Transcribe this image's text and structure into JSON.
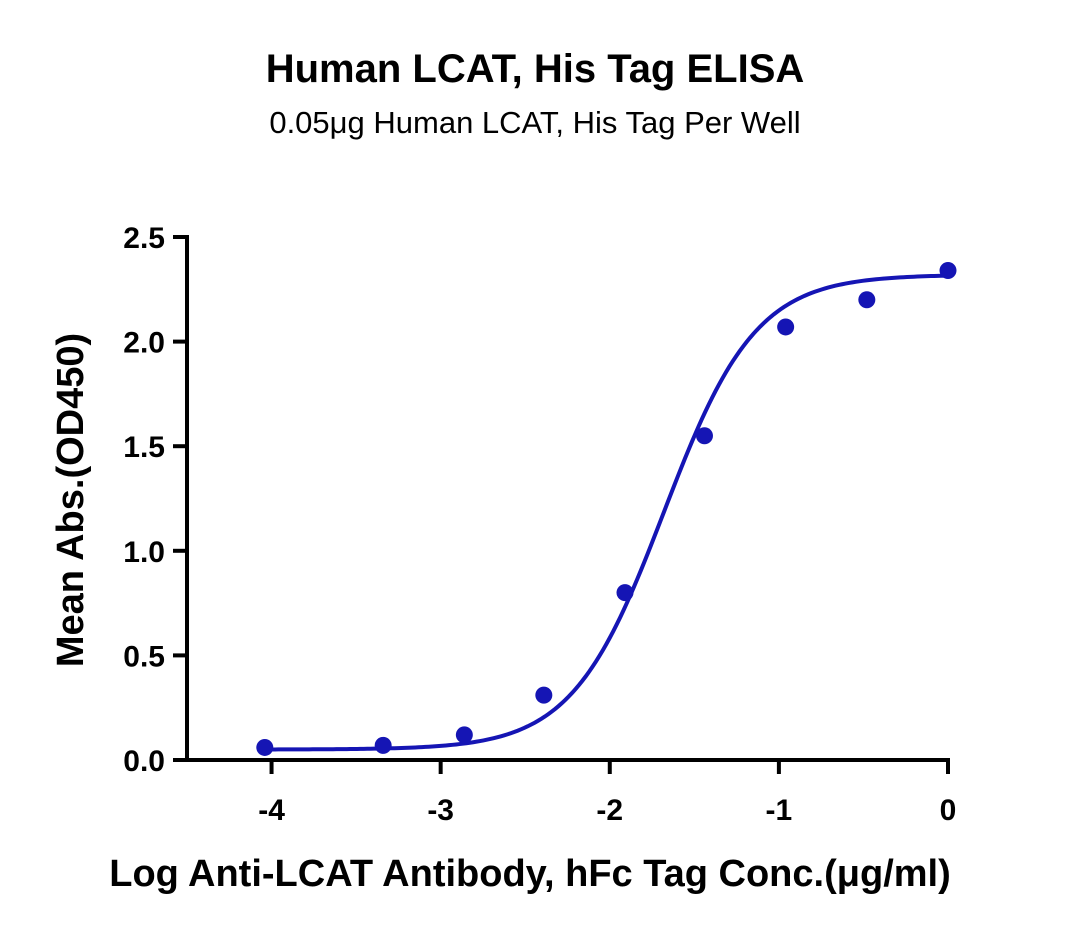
{
  "chart_data": {
    "type": "scatter",
    "title": "Human LCAT, His Tag ELISA",
    "subtitle": "0.05μg Human LCAT, His Tag Per Well",
    "xlabel": "Log Anti-LCAT Antibody, hFc Tag Conc.(μg/ml)",
    "ylabel": "Mean Abs.(OD450)",
    "xlim": [
      -4.5,
      0
    ],
    "ylim": [
      0,
      2.5
    ],
    "x_ticks": [
      -4,
      -3,
      -2,
      -1,
      0
    ],
    "x_tick_labels": [
      "-4",
      "-3",
      "-2",
      "-1",
      "0"
    ],
    "y_ticks": [
      0.0,
      0.5,
      1.0,
      1.5,
      2.0,
      2.5
    ],
    "y_tick_labels": [
      "0.0",
      "0.5",
      "1.0",
      "1.5",
      "2.0",
      "2.5"
    ],
    "grid": false,
    "color": "#1515b4",
    "series": [
      {
        "points": [
          {
            "x": -4.04,
            "y": 0.06
          },
          {
            "x": -3.34,
            "y": 0.07
          },
          {
            "x": -2.86,
            "y": 0.12
          },
          {
            "x": -2.39,
            "y": 0.31
          },
          {
            "x": -1.91,
            "y": 0.8
          },
          {
            "x": -1.44,
            "y": 1.55
          },
          {
            "x": -0.96,
            "y": 2.07
          },
          {
            "x": -0.48,
            "y": 2.2
          },
          {
            "x": 0.0,
            "y": 2.34
          }
        ],
        "fit": {
          "model": "4PL",
          "bottom": 0.05,
          "top": 2.32,
          "log_ec50": -1.68,
          "hill": 1.6
        }
      }
    ]
  }
}
